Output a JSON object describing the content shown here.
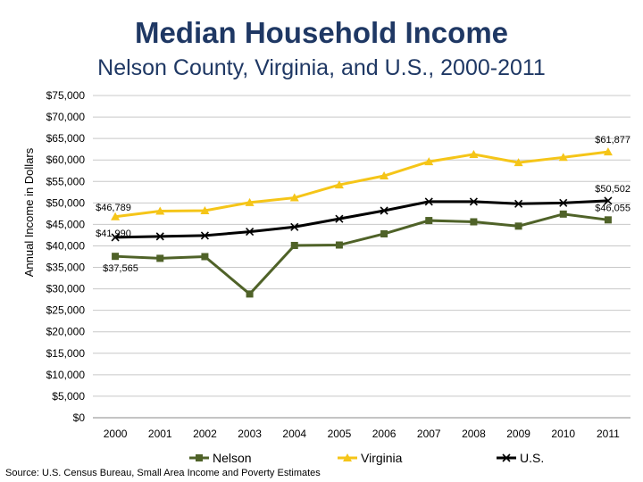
{
  "title": "Median Household Income",
  "subtitle": "Nelson County, Virginia, and U.S., 2000-2011",
  "source": "Source: U.S. Census Bureau, Small Area Income and Poverty Estimates",
  "chart_data": {
    "type": "line",
    "title": "Median Household Income",
    "subtitle": "Nelson County, Virginia, and U.S., 2000-2011",
    "ylabel": "Annual Income in Dollars",
    "xlabel": "",
    "ylim": [
      0,
      75000
    ],
    "ytick_step": 5000,
    "ytick_labels": [
      "$0",
      "$5,000",
      "$10,000",
      "$15,000",
      "$20,000",
      "$25,000",
      "$30,000",
      "$35,000",
      "$40,000",
      "$45,000",
      "$50,000",
      "$55,000",
      "$60,000",
      "$65,000",
      "$70,000",
      "$75,000"
    ],
    "categories": [
      "2000",
      "2001",
      "2002",
      "2003",
      "2004",
      "2005",
      "2006",
      "2007",
      "2008",
      "2009",
      "2010",
      "2011"
    ],
    "grid": true,
    "legend_position": "bottom",
    "series": [
      {
        "name": "Nelson",
        "color": "#4f6228",
        "marker": "square",
        "values": [
          37565,
          37100,
          37500,
          28800,
          40100,
          40200,
          42800,
          45900,
          45600,
          44600,
          47400,
          46055
        ]
      },
      {
        "name": "Virginia",
        "color": "#f5c518",
        "marker": "triangle",
        "values": [
          46789,
          48100,
          48200,
          50100,
          51200,
          54200,
          56300,
          59600,
          61300,
          59400,
          60600,
          61877
        ]
      },
      {
        "name": "U.S.",
        "color": "#000000",
        "marker": "x",
        "values": [
          41990,
          42200,
          42400,
          43300,
          44400,
          46300,
          48200,
          50300,
          50300,
          49800,
          50000,
          50502
        ]
      }
    ],
    "data_labels": [
      {
        "series": 1,
        "index": 0,
        "text": "$46,789"
      },
      {
        "series": 1,
        "index": 11,
        "text": "$61,877"
      },
      {
        "series": 2,
        "index": 0,
        "text": "$41,990"
      },
      {
        "series": 2,
        "index": 11,
        "text": "$50,502"
      },
      {
        "series": 0,
        "index": 0,
        "text": "$37,565"
      },
      {
        "series": 0,
        "index": 11,
        "text": "$46,055"
      }
    ]
  }
}
